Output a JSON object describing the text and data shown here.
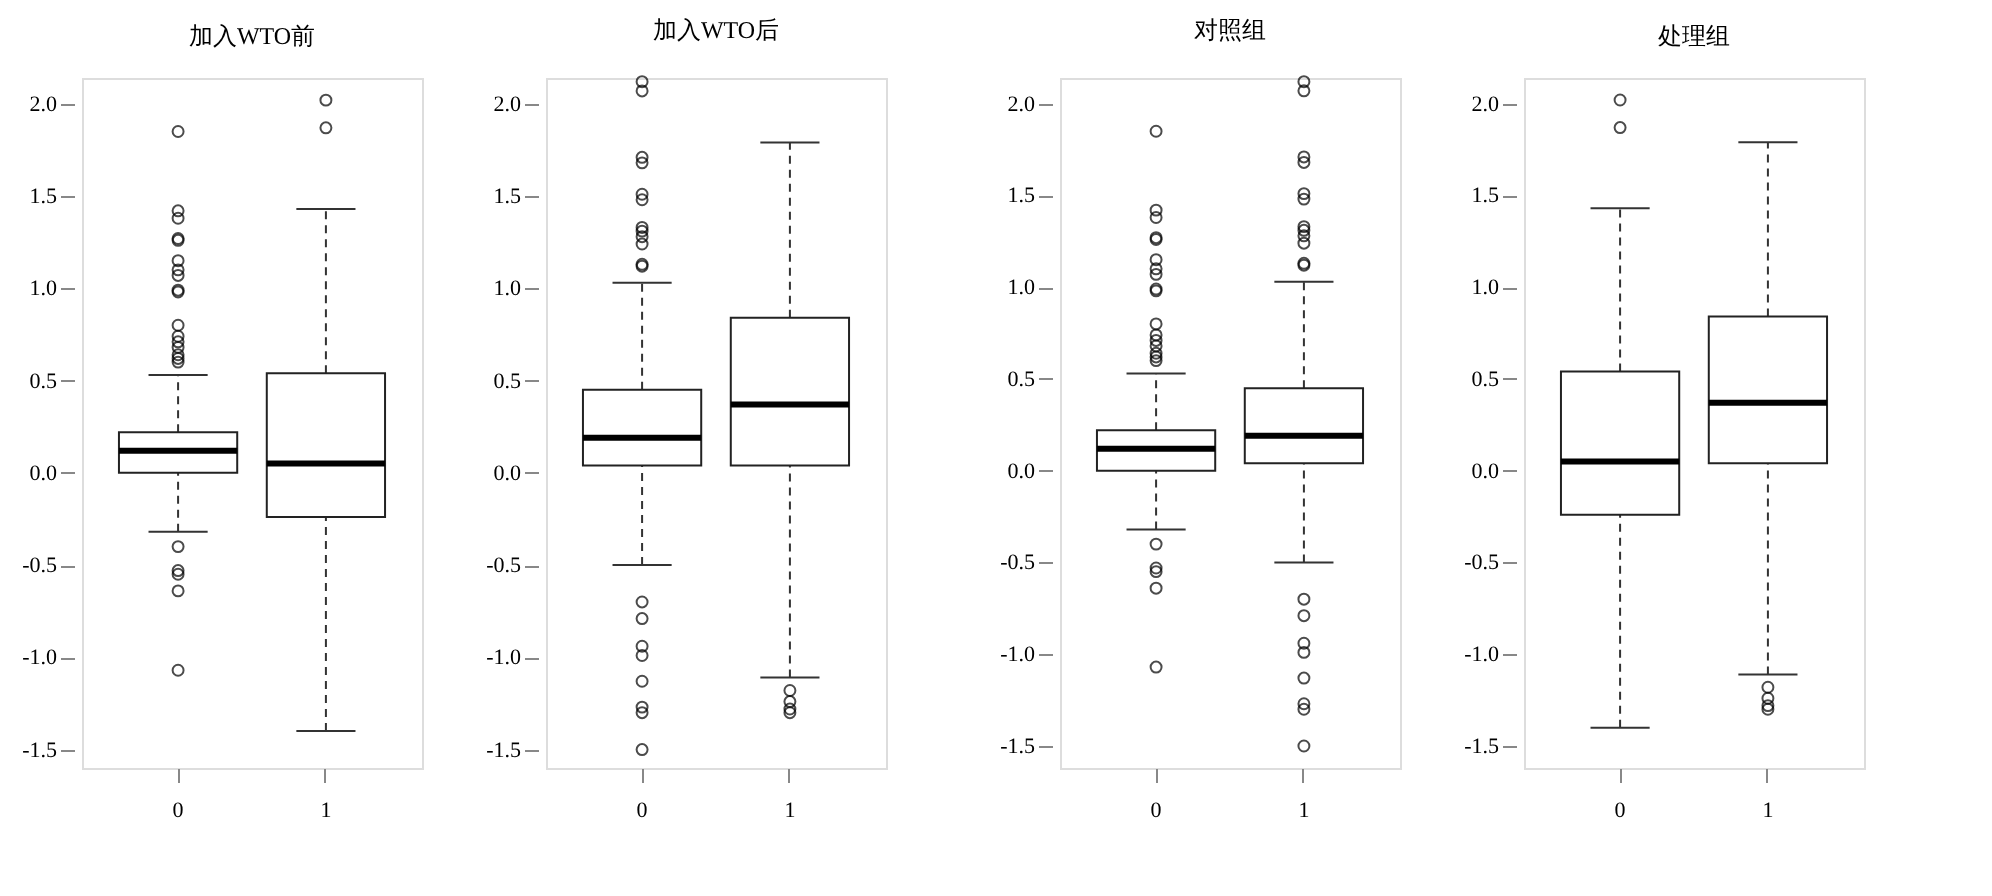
{
  "chart_data": [
    {
      "type": "box",
      "title": "加入WTO前",
      "categories": [
        "0",
        "1"
      ],
      "ylim": [
        -1.6,
        2.14
      ],
      "yticks": [
        {
          "value": -1.5,
          "label": "-1.5"
        },
        {
          "value": -1,
          "label": "-1.0"
        },
        {
          "value": -0.5,
          "label": "-0.5"
        },
        {
          "value": 0,
          "label": "0.0"
        },
        {
          "value": 0.5,
          "label": "0.5"
        },
        {
          "value": 1,
          "label": "1.0"
        },
        {
          "value": 1.5,
          "label": "1.5"
        },
        {
          "value": 2,
          "label": "2.0"
        }
      ],
      "grid": false,
      "boxes": [
        {
          "low": -0.32,
          "q1": 0.0,
          "median": 0.12,
          "q3": 0.22,
          "high": 0.53,
          "outliers": [
            1.85,
            1.42,
            1.38,
            1.27,
            1.26,
            1.15,
            1.1,
            1.07,
            0.99,
            0.98,
            0.8,
            0.74,
            0.71,
            0.68,
            0.64,
            0.62,
            0.6,
            -0.4,
            -0.53,
            -0.55,
            -0.64,
            -1.07
          ]
        },
        {
          "low": -1.4,
          "q1": -0.24,
          "median": 0.05,
          "q3": 0.54,
          "high": 1.43,
          "outliers": [
            2.02,
            1.87
          ]
        }
      ]
    },
    {
      "type": "box",
      "title": "加入WTO后",
      "categories": [
        "0",
        "1"
      ],
      "ylim": [
        -1.6,
        2.14
      ],
      "yticks": [
        {
          "value": -1.5,
          "label": "-1.5"
        },
        {
          "value": -1,
          "label": "-1.0"
        },
        {
          "value": -0.5,
          "label": "-0.5"
        },
        {
          "value": 0,
          "label": "0.0"
        },
        {
          "value": 0.5,
          "label": "0.5"
        },
        {
          "value": 1,
          "label": "1.0"
        },
        {
          "value": 1.5,
          "label": "1.5"
        },
        {
          "value": 2,
          "label": "2.0"
        }
      ],
      "grid": false,
      "boxes": [
        {
          "low": -0.5,
          "q1": 0.04,
          "median": 0.19,
          "q3": 0.45,
          "high": 1.03,
          "outliers": [
            2.12,
            2.07,
            1.71,
            1.68,
            1.51,
            1.48,
            1.33,
            1.31,
            1.28,
            1.24,
            1.13,
            1.12,
            -0.7,
            -0.79,
            -0.94,
            -0.99,
            -1.13,
            -1.27,
            -1.3,
            -1.5
          ]
        },
        {
          "low": -1.11,
          "q1": 0.04,
          "median": 0.37,
          "q3": 0.84,
          "high": 1.79,
          "outliers": [
            -1.18,
            -1.24,
            -1.28,
            -1.3
          ]
        }
      ]
    },
    {
      "type": "box",
      "title": "对照组",
      "categories": [
        "0",
        "1"
      ],
      "ylim": [
        -1.62,
        2.14
      ],
      "yticks": [
        {
          "value": -1.5,
          "label": "-1.5"
        },
        {
          "value": -1,
          "label": "-1.0"
        },
        {
          "value": -0.5,
          "label": "-0.5"
        },
        {
          "value": 0,
          "label": "0.0"
        },
        {
          "value": 0.5,
          "label": "0.5"
        },
        {
          "value": 1,
          "label": "1.0"
        },
        {
          "value": 1.5,
          "label": "1.5"
        },
        {
          "value": 2,
          "label": "2.0"
        }
      ],
      "grid": false,
      "boxes": [
        {
          "low": -0.32,
          "q1": 0.0,
          "median": 0.12,
          "q3": 0.22,
          "high": 0.53,
          "outliers": [
            1.85,
            1.42,
            1.38,
            1.27,
            1.26,
            1.15,
            1.1,
            1.07,
            0.99,
            0.98,
            0.8,
            0.74,
            0.71,
            0.68,
            0.64,
            0.62,
            0.6,
            -0.4,
            -0.53,
            -0.55,
            -0.64,
            -1.07
          ]
        },
        {
          "low": -0.5,
          "q1": 0.04,
          "median": 0.19,
          "q3": 0.45,
          "high": 1.03,
          "outliers": [
            2.12,
            2.07,
            1.71,
            1.68,
            1.51,
            1.48,
            1.33,
            1.31,
            1.28,
            1.24,
            1.13,
            1.12,
            -0.7,
            -0.79,
            -0.94,
            -0.99,
            -1.13,
            -1.27,
            -1.3,
            -1.5
          ]
        }
      ]
    },
    {
      "type": "box",
      "title": "处理组",
      "categories": [
        "0",
        "1"
      ],
      "ylim": [
        -1.62,
        2.14
      ],
      "yticks": [
        {
          "value": -1.5,
          "label": "-1.5"
        },
        {
          "value": -1,
          "label": "-1.0"
        },
        {
          "value": -0.5,
          "label": "-0.5"
        },
        {
          "value": 0,
          "label": "0.0"
        },
        {
          "value": 0.5,
          "label": "0.5"
        },
        {
          "value": 1,
          "label": "1.0"
        },
        {
          "value": 1.5,
          "label": "1.5"
        },
        {
          "value": 2,
          "label": "2.0"
        }
      ],
      "grid": false,
      "boxes": [
        {
          "low": -1.4,
          "q1": -0.24,
          "median": 0.05,
          "q3": 0.54,
          "high": 1.43,
          "outliers": [
            2.02,
            1.87
          ]
        },
        {
          "low": -1.11,
          "q1": 0.04,
          "median": 0.37,
          "q3": 0.84,
          "high": 1.79,
          "outliers": [
            -1.18,
            -1.24,
            -1.28,
            -1.3
          ]
        }
      ]
    }
  ]
}
